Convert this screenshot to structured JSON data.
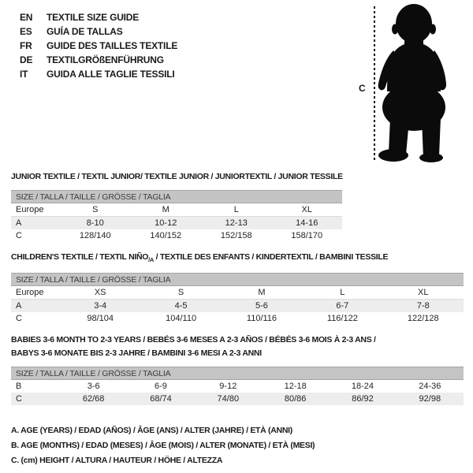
{
  "colors": {
    "bar_bg": "#c4c4c4",
    "bar_border": "#a5a5a5",
    "row_alt_bg": "#ededed",
    "text": "#1a1a1a",
    "silhouette": "#0b0b0b"
  },
  "header": {
    "languages": [
      {
        "code": "EN",
        "title": "TEXTILE SIZE GUIDE"
      },
      {
        "code": "ES",
        "title": "GUÍA DE TALLAS"
      },
      {
        "code": "FR",
        "title": "GUIDE DES TAILLES TEXTILE"
      },
      {
        "code": "DE",
        "title": "TEXTILGRÖßENFÜHRUNG"
      },
      {
        "code": "IT",
        "title": "GUIDA ALLE TAGLIE TESSILI"
      }
    ]
  },
  "figure": {
    "measure_label": "C",
    "icon": "baby-silhouette"
  },
  "sections": [
    {
      "id": "junior",
      "title_lines": [
        [
          {
            "t": "JUNIOR TEXTILE / TEXTIL JUNIOR/ TEXTILE JUNIOR / JUNIORTEXTIL / JUNIOR TESSILE"
          }
        ]
      ],
      "size_bar": "SIZE / TALLA / TAILLE / GRÖSSE / TAGLIA",
      "columns": [
        "Europe",
        "S",
        "M",
        "L",
        "XL"
      ],
      "rows": [
        {
          "label": "A",
          "values": [
            "8-10",
            "10-12",
            "12-13",
            "14-16"
          ],
          "shaded": true
        },
        {
          "label": "C",
          "values": [
            "128/140",
            "140/152",
            "152/158",
            "158/170"
          ],
          "shaded": false
        }
      ]
    },
    {
      "id": "children",
      "title_lines": [
        [
          {
            "t": "CHILDREN'S TEXTILE / TEXTIL NIÑO"
          },
          {
            "t": "/A",
            "sub": true
          },
          {
            "t": " / TEXTILE DES ENFANTS / KINDERTEXTIL / BAMBINI TESSILE"
          }
        ]
      ],
      "size_bar": "SIZE / TALLA / TAILLE / GRÖSSE / TAGLIA",
      "columns": [
        "Europe",
        "XS",
        "S",
        "M",
        "L",
        "XL"
      ],
      "rows": [
        {
          "label": "A",
          "values": [
            "3-4",
            "4-5",
            "5-6",
            "6-7",
            "7-8"
          ],
          "shaded": true
        },
        {
          "label": "C",
          "values": [
            "98/104",
            "104/110",
            "110/116",
            "116/122",
            "122/128"
          ],
          "shaded": false
        }
      ]
    },
    {
      "id": "babies",
      "title_lines": [
        [
          {
            "t": "BABIES 3-6 MONTH TO 2-3 YEARS / BEBÉS 3-6 MESES A 2-3 AÑOS / BÉBÉS 3-6 MOIS À 2-3 ANS /"
          }
        ],
        [
          {
            "t": "BABYS 3-6 MONATE BIS 2-3 JAHRE / BAMBINI 3-6 MESI A 2-3 ANNI"
          }
        ]
      ],
      "size_bar": "SIZE / TALLA / TAILLE / GRÖSSE / TAGLIA",
      "columns": null,
      "rows": [
        {
          "label": "B",
          "values": [
            "3-6",
            "6-9",
            "9-12",
            "12-18",
            "18-24",
            "24-36"
          ],
          "shaded": false
        },
        {
          "label": "C",
          "values": [
            "62/68",
            "68/74",
            "74/80",
            "80/86",
            "86/92",
            "92/98"
          ],
          "shaded": true
        }
      ]
    }
  ],
  "footnotes": [
    "A. AGE (YEARS) / EDAD (AÑOS) / ÂGE (ANS) / ALTER (JAHRE) / ETÀ (ANNI)",
    "B. AGE (MONTHS) / EDAD (MESES) / ÂGE (MOIS) / ALTER (MONATE) / ETÀ (MESI)",
    "C. (cm) HEIGHT / ALTURA / HAUTEUR / HÖHE / ALTEZZA"
  ]
}
